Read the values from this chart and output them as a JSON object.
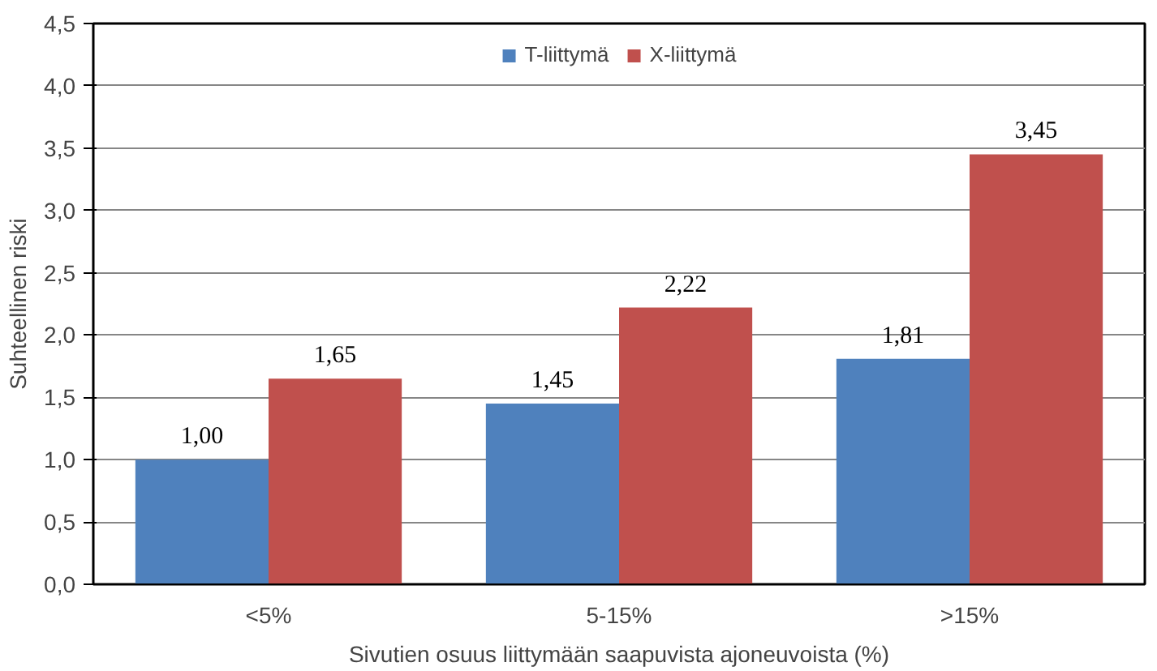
{
  "chart_data": {
    "type": "bar",
    "ylabel": "Suhteellinen riski",
    "xlabel": "Sivutien osuus liittymään saapuvista ajoneuvoista (%)",
    "categories": [
      "<5%",
      "5-15%",
      ">15%"
    ],
    "series": [
      {
        "name": "T-liittymä",
        "color": "#4f81bd",
        "values": [
          1.0,
          1.45,
          1.81
        ],
        "value_labels": [
          "1,00",
          "1,45",
          "1,81"
        ]
      },
      {
        "name": "X-liittymä",
        "color": "#c0504d",
        "values": [
          1.65,
          2.22,
          3.45
        ],
        "value_labels": [
          "1,65",
          "2,22",
          "3,45"
        ]
      }
    ],
    "ylim": [
      0,
      4.5
    ],
    "yticks": [
      {
        "value": 0,
        "label": "0,0"
      },
      {
        "value": 0.5,
        "label": "0,5"
      },
      {
        "value": 1,
        "label": "1,0"
      },
      {
        "value": 1.5,
        "label": "1,5"
      },
      {
        "value": 2,
        "label": "2,0"
      },
      {
        "value": 2.5,
        "label": "2,5"
      },
      {
        "value": 3,
        "label": "3,0"
      },
      {
        "value": 3.5,
        "label": "3,5"
      },
      {
        "value": 4,
        "label": "4,0"
      },
      {
        "value": 4.5,
        "label": "4,5"
      }
    ],
    "grid": "y",
    "legend": "top"
  }
}
